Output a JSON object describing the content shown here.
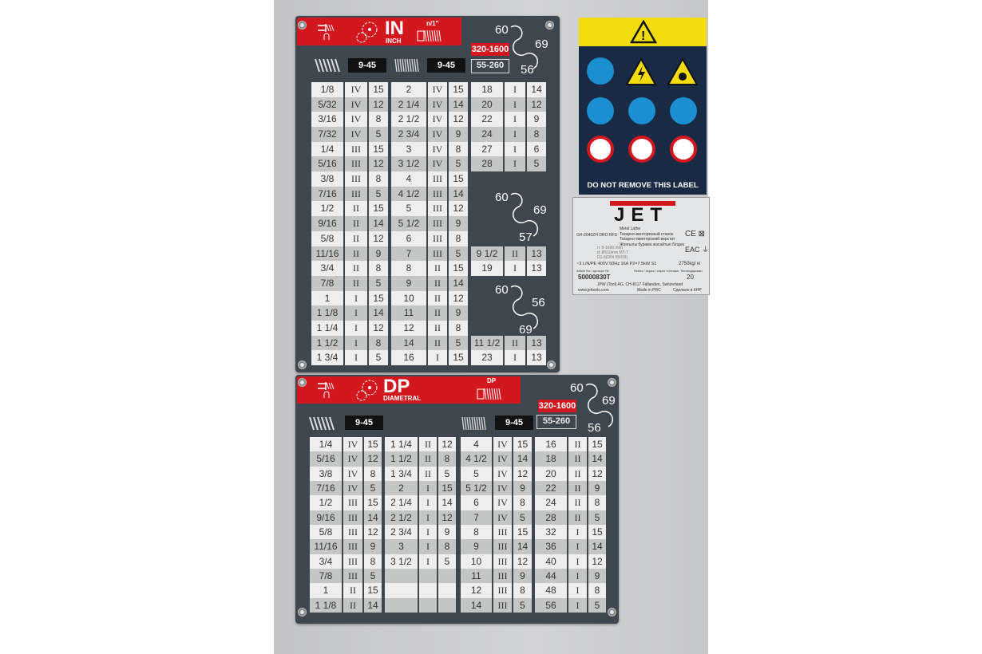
{
  "in_plate": {
    "title": "IN",
    "subtitle": "INCH",
    "pitch_label": "n/1\"",
    "range_left": "9-45",
    "range_mid": "9-45",
    "range_red": "320-1600",
    "range_box": "55-260",
    "gear_top": [
      "60",
      "69",
      "56"
    ],
    "gear_mid": [
      "60",
      "69",
      "57"
    ],
    "gear_bottom": [
      "60",
      "56",
      "69"
    ],
    "col1": [
      [
        "1/8",
        "IV",
        "15"
      ],
      [
        "5/32",
        "IV",
        "12"
      ],
      [
        "3/16",
        "IV",
        "8"
      ],
      [
        "7/32",
        "IV",
        "5"
      ],
      [
        "1/4",
        "III",
        "15"
      ],
      [
        "5/16",
        "III",
        "12"
      ],
      [
        "3/8",
        "III",
        "8"
      ],
      [
        "7/16",
        "III",
        "5"
      ],
      [
        "1/2",
        "II",
        "15"
      ],
      [
        "9/16",
        "II",
        "14"
      ],
      [
        "5/8",
        "II",
        "12"
      ],
      [
        "11/16",
        "II",
        "9"
      ],
      [
        "3/4",
        "II",
        "8"
      ],
      [
        "7/8",
        "II",
        "5"
      ],
      [
        "1",
        "I",
        "15"
      ],
      [
        "1 1/8",
        "I",
        "14"
      ],
      [
        "1 1/4",
        "I",
        "12"
      ],
      [
        "1 1/2",
        "I",
        "8"
      ],
      [
        "1 3/4",
        "I",
        "5"
      ]
    ],
    "col2": [
      [
        "2",
        "IV",
        "15"
      ],
      [
        "2 1/4",
        "IV",
        "14"
      ],
      [
        "2 1/2",
        "IV",
        "12"
      ],
      [
        "2 3/4",
        "IV",
        "9"
      ],
      [
        "3",
        "IV",
        "8"
      ],
      [
        "3 1/2",
        "IV",
        "5"
      ],
      [
        "4",
        "III",
        "15"
      ],
      [
        "4 1/2",
        "III",
        "14"
      ],
      [
        "5",
        "III",
        "12"
      ],
      [
        "5 1/2",
        "III",
        "9"
      ],
      [
        "6",
        "III",
        "8"
      ],
      [
        "7",
        "III",
        "5"
      ],
      [
        "8",
        "II",
        "15"
      ],
      [
        "9",
        "II",
        "14"
      ],
      [
        "10",
        "II",
        "12"
      ],
      [
        "11",
        "II",
        "9"
      ],
      [
        "12",
        "II",
        "8"
      ],
      [
        "14",
        "II",
        "5"
      ],
      [
        "16",
        "I",
        "15"
      ]
    ],
    "col3_top": [
      [
        "18",
        "I",
        "14"
      ],
      [
        "20",
        "I",
        "12"
      ],
      [
        "22",
        "I",
        "9"
      ],
      [
        "24",
        "I",
        "8"
      ],
      [
        "27",
        "I",
        "6"
      ],
      [
        "28",
        "I",
        "5"
      ]
    ],
    "col3_mid": [
      [
        "9 1/2",
        "II",
        "13"
      ],
      [
        "19",
        "I",
        "13"
      ]
    ],
    "col3_bottom": [
      [
        "11 1/2",
        "II",
        "13"
      ],
      [
        "23",
        "I",
        "13"
      ]
    ]
  },
  "dp_plate": {
    "title": "DP",
    "subtitle": "DIAMETRAL",
    "pitch_label": "DP",
    "range_left": "9-45",
    "range_mid": "9-45",
    "range_red": "320-1600",
    "range_box": "55-260",
    "gear": [
      "60",
      "69",
      "56"
    ],
    "col1": [
      [
        "1/4",
        "IV",
        "15"
      ],
      [
        "5/16",
        "IV",
        "12"
      ],
      [
        "3/8",
        "IV",
        "8"
      ],
      [
        "7/16",
        "IV",
        "5"
      ],
      [
        "1/2",
        "III",
        "15"
      ],
      [
        "9/16",
        "III",
        "14"
      ],
      [
        "5/8",
        "III",
        "12"
      ],
      [
        "11/16",
        "III",
        "9"
      ],
      [
        "3/4",
        "III",
        "8"
      ],
      [
        "7/8",
        "III",
        "5"
      ],
      [
        "1",
        "II",
        "15"
      ],
      [
        "1 1/8",
        "II",
        "14"
      ]
    ],
    "col2": [
      [
        "1 1/4",
        "II",
        "12"
      ],
      [
        "1 1/2",
        "II",
        "8"
      ],
      [
        "1 3/4",
        "II",
        "5"
      ],
      [
        "2",
        "I",
        "15"
      ],
      [
        "2 1/4",
        "I",
        "14"
      ],
      [
        "2 1/2",
        "I",
        "12"
      ],
      [
        "2 3/4",
        "I",
        "9"
      ],
      [
        "3",
        "I",
        "8"
      ],
      [
        "3 1/2",
        "I",
        "5"
      ],
      [
        "",
        "",
        ""
      ],
      [
        "",
        "",
        ""
      ],
      [
        "",
        "",
        ""
      ]
    ],
    "col3": [
      [
        "4",
        "IV",
        "15"
      ],
      [
        "4 1/2",
        "IV",
        "14"
      ],
      [
        "5",
        "IV",
        "12"
      ],
      [
        "5 1/2",
        "IV",
        "9"
      ],
      [
        "6",
        "IV",
        "8"
      ],
      [
        "7",
        "IV",
        "5"
      ],
      [
        "8",
        "III",
        "15"
      ],
      [
        "9",
        "III",
        "14"
      ],
      [
        "10",
        "III",
        "12"
      ],
      [
        "11",
        "III",
        "9"
      ],
      [
        "12",
        "III",
        "8"
      ],
      [
        "14",
        "III",
        "5"
      ]
    ],
    "col4": [
      [
        "16",
        "II",
        "15"
      ],
      [
        "18",
        "II",
        "14"
      ],
      [
        "20",
        "II",
        "12"
      ],
      [
        "22",
        "II",
        "9"
      ],
      [
        "24",
        "II",
        "8"
      ],
      [
        "28",
        "II",
        "5"
      ],
      [
        "32",
        "I",
        "15"
      ],
      [
        "36",
        "I",
        "14"
      ],
      [
        "40",
        "I",
        "12"
      ],
      [
        "44",
        "I",
        "9"
      ],
      [
        "48",
        "I",
        "8"
      ],
      [
        "56",
        "I",
        "5"
      ]
    ]
  },
  "warning_label": {
    "footer": "DO NOT REMOVE THIS LABEL",
    "colors": {
      "yellow": "#f2dc0e",
      "blue": "#1c8fd0",
      "red": "#d3171f"
    }
  },
  "nameplate": {
    "brand": "JET",
    "model": "GH-2040ZH DRO RFS",
    "description": [
      "Metal Lathe",
      "Токарно-винторезный станок",
      "Токарно-гвинторізний верстат",
      "Жонгылы бурама жасайтын білдек"
    ],
    "specs": [
      "n: 9-1600 /min",
      "d: Ø510mm  MT-7",
      "D1-8(DIN 55029)"
    ],
    "power": "~3 L/N/PE 400V 50Hz 16A P2=7.5kW S1",
    "weight": "2750kg/ кг",
    "article_label": "Article No / артикул №",
    "series_label": "Series / серия / серія/ топтама",
    "qty_label": "Тектопдиривки",
    "article": "50000830T",
    "qty": "20",
    "address": "JPW (Tool) AG, CH-8117  Fällanden, Switzerland",
    "website": "www.jettools.com",
    "made_in": "Made in PRC",
    "made_in_ru": "Сделано в КНР"
  },
  "colors": {
    "plate": "#3e4650",
    "header_red": "#d3171f",
    "panel": "#c9cacc"
  }
}
